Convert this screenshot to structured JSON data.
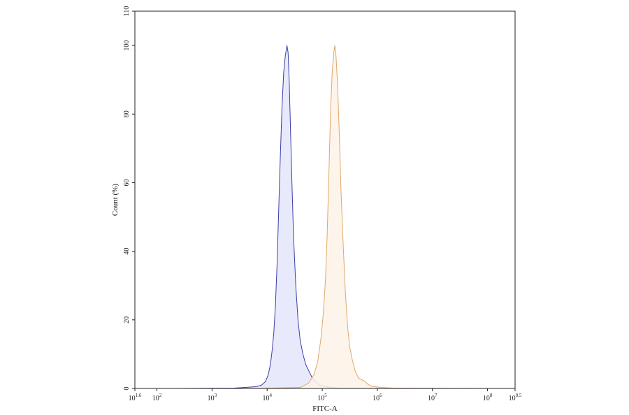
{
  "chart_data": {
    "type": "area",
    "xlabel": "FITC-A",
    "ylabel": "Count (%)",
    "xscale": "log10",
    "xlim": [
      1.6,
      8.5
    ],
    "ylim": [
      0,
      110
    ],
    "grid": false,
    "legend": "none",
    "x_ticks": [
      {
        "base": "10",
        "exp": "1.6",
        "value": 1.6
      },
      {
        "base": "10",
        "exp": "2",
        "value": 2
      },
      {
        "base": "10",
        "exp": "3",
        "value": 3
      },
      {
        "base": "10",
        "exp": "4",
        "value": 4
      },
      {
        "base": "10",
        "exp": "5",
        "value": 5
      },
      {
        "base": "10",
        "exp": "6",
        "value": 6
      },
      {
        "base": "10",
        "exp": "7",
        "value": 7
      },
      {
        "base": "10",
        "exp": "8",
        "value": 8
      },
      {
        "base": "10",
        "exp": "8.5",
        "value": 8.5
      }
    ],
    "y_ticks": [
      "0",
      "20",
      "40",
      "60",
      "80",
      "100",
      "110"
    ],
    "series": [
      {
        "line_color": "#3a3fa8",
        "fill_color": "#e4e6fb",
        "points": [
          [
            2.4,
            0
          ],
          [
            3.4,
            0.1
          ],
          [
            3.8,
            0.5
          ],
          [
            3.9,
            1.0
          ],
          [
            3.97,
            2.0
          ],
          [
            4.02,
            4.0
          ],
          [
            4.06,
            7.0
          ],
          [
            4.09,
            11.0
          ],
          [
            4.12,
            16.0
          ],
          [
            4.15,
            24.0
          ],
          [
            4.18,
            36.0
          ],
          [
            4.21,
            52.0
          ],
          [
            4.24,
            68.0
          ],
          [
            4.27,
            82.0
          ],
          [
            4.3,
            92.0
          ],
          [
            4.33,
            97.0
          ],
          [
            4.36,
            100.0
          ],
          [
            4.38,
            98.0
          ],
          [
            4.4,
            90.0
          ],
          [
            4.42,
            78.0
          ],
          [
            4.45,
            60.0
          ],
          [
            4.48,
            44.0
          ],
          [
            4.52,
            30.0
          ],
          [
            4.56,
            20.0
          ],
          [
            4.6,
            14.0
          ],
          [
            4.65,
            10.0
          ],
          [
            4.7,
            7.0
          ],
          [
            4.76,
            5.0
          ],
          [
            4.82,
            3.0
          ],
          [
            4.88,
            2.0
          ],
          [
            4.95,
            1.0
          ],
          [
            5.05,
            0.5
          ],
          [
            5.3,
            0.1
          ],
          [
            6.2,
            0.05
          ],
          [
            8.2,
            0
          ]
        ]
      },
      {
        "line_color": "#e0a769",
        "fill_color": "#fdf3e7",
        "points": [
          [
            3.8,
            0
          ],
          [
            4.6,
            0.3
          ],
          [
            4.75,
            1.5
          ],
          [
            4.85,
            4.0
          ],
          [
            4.92,
            8.0
          ],
          [
            4.98,
            15.0
          ],
          [
            5.02,
            22.0
          ],
          [
            5.06,
            32.0
          ],
          [
            5.09,
            45.0
          ],
          [
            5.12,
            62.0
          ],
          [
            5.15,
            80.0
          ],
          [
            5.18,
            92.0
          ],
          [
            5.21,
            98.0
          ],
          [
            5.23,
            100.0
          ],
          [
            5.25,
            97.0
          ],
          [
            5.28,
            88.0
          ],
          [
            5.31,
            74.0
          ],
          [
            5.34,
            58.0
          ],
          [
            5.38,
            42.0
          ],
          [
            5.42,
            28.0
          ],
          [
            5.46,
            18.0
          ],
          [
            5.5,
            12.0
          ],
          [
            5.55,
            8.0
          ],
          [
            5.6,
            5.0
          ],
          [
            5.66,
            3.0
          ],
          [
            5.72,
            2.5
          ],
          [
            5.78,
            2.0
          ],
          [
            5.83,
            1.2
          ],
          [
            5.9,
            0.6
          ],
          [
            6.05,
            0.3
          ],
          [
            6.3,
            0.1
          ],
          [
            7.0,
            0
          ]
        ]
      }
    ]
  }
}
